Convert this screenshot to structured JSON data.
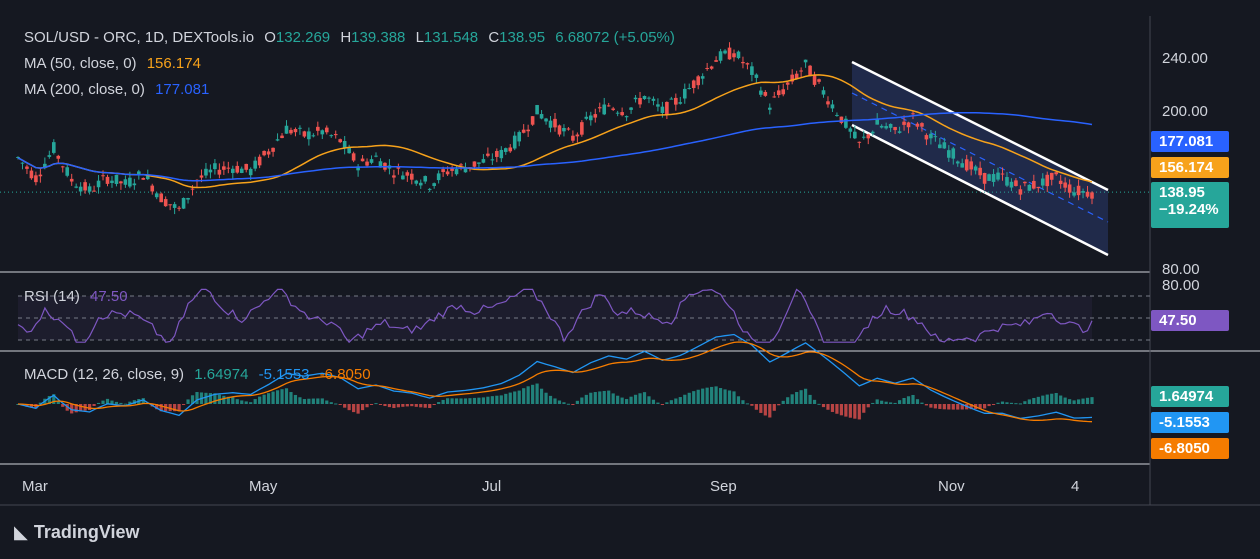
{
  "header": {
    "symbol": "SOL/USD - ORC, 1D, DEXTools.io",
    "open_label": "O",
    "open": "132.269",
    "high_label": "H",
    "high": "139.388",
    "low_label": "L",
    "low": "131.548",
    "close_label": "C",
    "close": "138.95",
    "change": "6.68072 (+5.05%)"
  },
  "ma50": {
    "label": "MA (50, close, 0)",
    "value": "156.174",
    "color": "#f7a21b"
  },
  "ma200": {
    "label": "MA (200, close, 0)",
    "value": "177.081",
    "color": "#2962ff"
  },
  "rsi": {
    "label": "RSI (14)",
    "value": "47.50",
    "color": "#7e57c2"
  },
  "macd": {
    "label": "MACD (12, 26, close, 9)",
    "hist": "1.64974",
    "macd": "-5.1553",
    "signal": "-6.8050"
  },
  "price_axis": {
    "ticks": [
      "240.00",
      "200.00",
      "80.00"
    ],
    "rsi_tick": "80.00"
  },
  "tags": {
    "ma200": "177.081",
    "ma50": "156.174",
    "price": "138.95",
    "price_change": "−19.24%",
    "rsi": "47.50",
    "hist": "1.64974",
    "macd": "-5.1553",
    "signal": "-6.8050"
  },
  "time_axis": [
    "Mar",
    "May",
    "Jul",
    "Sep",
    "Nov",
    "4"
  ],
  "brand": "TradingView",
  "colors": {
    "up": "#26a69a",
    "down": "#ef5350",
    "channel": "#2a3a6e",
    "bg": "#151821"
  },
  "chart_data": {
    "type": "line",
    "title": "SOL/USD - ORC, 1D, DEXTools.io",
    "ylim": [
      80,
      260
    ],
    "price_path": [
      [
        0,
        165
      ],
      [
        4,
        150
      ],
      [
        8,
        172
      ],
      [
        12,
        148
      ],
      [
        16,
        140
      ],
      [
        20,
        150
      ],
      [
        24,
        145
      ],
      [
        28,
        153
      ],
      [
        32,
        135
      ],
      [
        36,
        125
      ],
      [
        40,
        148
      ],
      [
        44,
        156
      ],
      [
        48,
        158
      ],
      [
        52,
        155
      ],
      [
        56,
        170
      ],
      [
        60,
        187
      ],
      [
        64,
        182
      ],
      [
        68,
        185
      ],
      [
        72,
        178
      ],
      [
        76,
        160
      ],
      [
        80,
        165
      ],
      [
        84,
        155
      ],
      [
        88,
        152
      ],
      [
        92,
        145
      ],
      [
        96,
        155
      ],
      [
        100,
        158
      ],
      [
        104,
        162
      ],
      [
        108,
        168
      ],
      [
        112,
        180
      ],
      [
        116,
        200
      ],
      [
        120,
        190
      ],
      [
        124,
        180
      ],
      [
        128,
        195
      ],
      [
        132,
        205
      ],
      [
        136,
        200
      ],
      [
        140,
        212
      ],
      [
        144,
        200
      ],
      [
        148,
        210
      ],
      [
        152,
        225
      ],
      [
        156,
        240
      ],
      [
        160,
        245
      ],
      [
        164,
        230
      ],
      [
        168,
        205
      ],
      [
        172,
        220
      ],
      [
        176,
        235
      ],
      [
        180,
        215
      ],
      [
        184,
        195
      ],
      [
        188,
        175
      ],
      [
        192,
        190
      ],
      [
        196,
        185
      ],
      [
        200,
        195
      ],
      [
        204,
        180
      ],
      [
        208,
        170
      ],
      [
        212,
        160
      ],
      [
        216,
        150
      ],
      [
        220,
        150
      ],
      [
        224,
        142
      ],
      [
        228,
        145
      ],
      [
        232,
        150
      ],
      [
        236,
        140
      ],
      [
        240,
        138.95
      ]
    ],
    "series": [
      {
        "name": "MA (50, close, 0)",
        "last": 156.174
      },
      {
        "name": "MA (200, close, 0)",
        "last": 177.081
      }
    ],
    "rsi_last": 47.5,
    "macd_last": -5.1553,
    "signal_last": -6.805,
    "hist_last": 1.64974
  }
}
